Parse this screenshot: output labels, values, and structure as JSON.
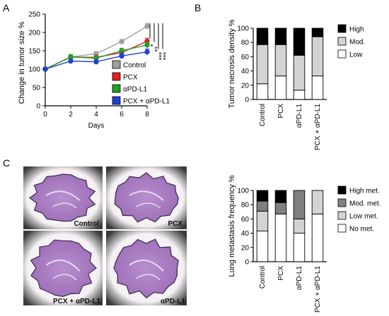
{
  "panels": {
    "a": "A",
    "b": "B",
    "c": "C"
  },
  "chart_data": [
    {
      "id": "tumor-growth",
      "type": "line",
      "xlabel": "Days",
      "ylabel": "Change in tumor size %",
      "xlim": [
        0,
        8
      ],
      "ylim": [
        0,
        250
      ],
      "xticks": [
        0,
        2,
        4,
        6,
        8
      ],
      "yticks": [
        0,
        50,
        100,
        150,
        200,
        250
      ],
      "x": [
        0,
        2,
        4,
        6,
        8
      ],
      "series": [
        {
          "name": "Control",
          "color": "#a0a0a0",
          "values": [
            100,
            133,
            142,
            175,
            217
          ],
          "err": [
            5,
            6,
            6,
            6,
            8
          ]
        },
        {
          "name": "PCX",
          "color": "#e02020",
          "values": [
            100,
            133,
            132,
            145,
            176
          ],
          "err": [
            5,
            6,
            6,
            7,
            8
          ]
        },
        {
          "name": "αPD-L1",
          "color": "#20a020",
          "values": [
            100,
            133,
            130,
            150,
            166
          ],
          "err": [
            5,
            7,
            6,
            7,
            8
          ]
        },
        {
          "name": "PCX + αPD-L1",
          "color": "#2040d0",
          "values": [
            100,
            122,
            120,
            136,
            147
          ],
          "err": [
            5,
            6,
            6,
            8,
            8
          ]
        }
      ],
      "significance": [
        "*",
        "**",
        "***",
        "***"
      ]
    },
    {
      "id": "necrosis-density",
      "type": "bar",
      "stacked": true,
      "ylabel": "Tumor necrosis density %",
      "ylim": [
        0,
        100
      ],
      "yticks": [
        0,
        20,
        40,
        60,
        80,
        100
      ],
      "categories": [
        "Control",
        "PCX",
        "αPD-L1",
        "PCX + αPD-L1"
      ],
      "series": [
        {
          "name": "Low",
          "color": "#ffffff",
          "values": [
            22,
            33,
            13,
            33
          ]
        },
        {
          "name": "Mod.",
          "color": "#d3d3d3",
          "values": [
            55,
            44,
            49,
            55
          ]
        },
        {
          "name": "High",
          "color": "#000000",
          "values": [
            23,
            23,
            38,
            12
          ]
        }
      ],
      "legend_order": [
        "High",
        "Mod.",
        "Low"
      ]
    },
    {
      "id": "lung-metastasis",
      "type": "bar",
      "stacked": true,
      "ylabel": "Lung metastasis frequency %",
      "ylim": [
        0,
        100
      ],
      "yticks": [
        0,
        20,
        40,
        60,
        80,
        100
      ],
      "categories": [
        "Control",
        "PCX",
        "αPD-L1",
        "PCX + αPD-L1"
      ],
      "series": [
        {
          "name": "No met.",
          "color": "#ffffff",
          "values": [
            43,
            67,
            40,
            67
          ]
        },
        {
          "name": "Low met.",
          "color": "#d3d3d3",
          "values": [
            28,
            0,
            20,
            33
          ]
        },
        {
          "name": "Mod. met.",
          "color": "#808080",
          "values": [
            14,
            16,
            40,
            0
          ]
        },
        {
          "name": "High met.",
          "color": "#000000",
          "values": [
            15,
            17,
            0,
            0
          ]
        }
      ],
      "legend_order": [
        "High met.",
        "Mod. met.",
        "Low met.",
        "No met."
      ]
    }
  ],
  "micrographs": [
    {
      "label": "Control"
    },
    {
      "label": "PCX"
    },
    {
      "label": "PCX + αPD-L1"
    },
    {
      "label": "αPD-L1"
    }
  ]
}
